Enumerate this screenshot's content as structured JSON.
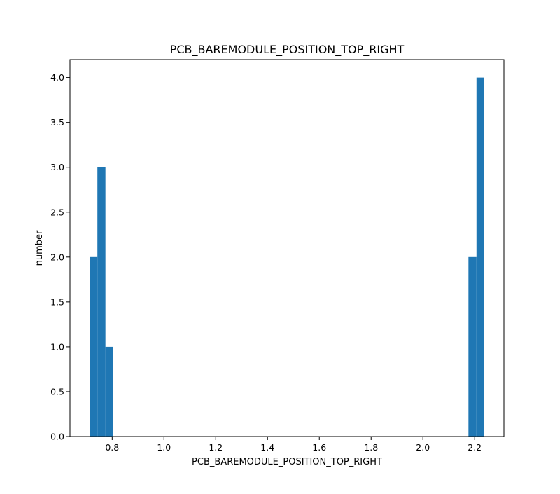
{
  "chart_data": {
    "type": "bar",
    "subtype": "histogram",
    "title": "PCB_BAREMODULE_POSITION_TOP_RIGHT",
    "xlabel": "PCB_BAREMODULE_POSITION_TOP_RIGHT",
    "ylabel": "number",
    "xlim": [
      0.637,
      2.313
    ],
    "ylim": [
      0,
      4.2
    ],
    "xticks": [
      "0.8",
      "1.0",
      "1.2",
      "1.4",
      "1.6",
      "1.8",
      "2.0",
      "2.2"
    ],
    "yticks": [
      "0.0",
      "0.5",
      "1.0",
      "1.5",
      "2.0",
      "2.5",
      "3.0",
      "3.5",
      "4.0"
    ],
    "grid": false,
    "legend": "none",
    "bar_color": "#1f77b4",
    "bins": [
      {
        "x0": 0.713,
        "x1": 0.743,
        "value": 2
      },
      {
        "x0": 0.743,
        "x1": 0.774,
        "value": 3
      },
      {
        "x0": 0.774,
        "x1": 0.804,
        "value": 1
      },
      {
        "x0": 2.176,
        "x1": 2.207,
        "value": 2
      },
      {
        "x0": 2.207,
        "x1": 2.237,
        "value": 4
      }
    ]
  }
}
